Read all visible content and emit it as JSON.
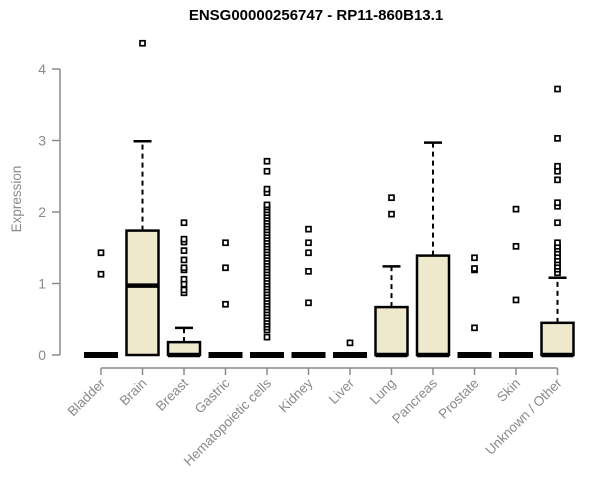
{
  "chart_data": {
    "type": "boxplot",
    "title": "ENSG00000256747 - RP11-860B13.1",
    "ylabel": "Expression",
    "xlabel": "",
    "ylim": [
      0,
      4
    ],
    "yticks": [
      0,
      1,
      2,
      3,
      4
    ],
    "grid": false,
    "legend": false,
    "categories": [
      "Bladder",
      "Brain",
      "Breast",
      "Gastric",
      "Hematopoietic cells",
      "Kidney",
      "Liver",
      "Lung",
      "Pancreas",
      "Prostate",
      "Skin",
      "Unknown / Other"
    ],
    "series": [
      {
        "name": "Bladder",
        "whisker_low": 0,
        "q1": 0,
        "median": 0,
        "q3": 0,
        "whisker_high": 0,
        "outliers": [
          1.13,
          1.43
        ]
      },
      {
        "name": "Brain",
        "whisker_low": 0,
        "q1": 0,
        "median": 0.97,
        "q3": 1.74,
        "whisker_high": 2.99,
        "outliers": [
          4.36
        ]
      },
      {
        "name": "Breast",
        "whisker_low": 0,
        "q1": 0,
        "median": 0,
        "q3": 0.18,
        "whisker_high": 0.38,
        "outliers": [
          0.87,
          0.91,
          0.99,
          1.06,
          1.19,
          1.22,
          1.33,
          1.46,
          1.58,
          1.62,
          1.85
        ]
      },
      {
        "name": "Gastric",
        "whisker_low": 0,
        "q1": 0,
        "median": 0,
        "q3": 0,
        "whisker_high": 0,
        "outliers": [
          0.71,
          1.22,
          1.57
        ]
      },
      {
        "name": "Hematopoietic cells",
        "whisker_low": 0,
        "q1": 0,
        "median": 0,
        "q3": 0,
        "whisker_high": 0,
        "outliers": [
          0.25,
          0.35,
          0.39,
          0.43,
          0.47,
          0.51,
          0.55,
          0.59,
          0.63,
          0.67,
          0.71,
          0.75,
          0.79,
          0.83,
          0.87,
          0.91,
          0.95,
          0.99,
          1.03,
          1.07,
          1.11,
          1.15,
          1.19,
          1.23,
          1.27,
          1.31,
          1.35,
          1.39,
          1.43,
          1.47,
          1.51,
          1.55,
          1.59,
          1.63,
          1.67,
          1.71,
          1.75,
          1.79,
          1.83,
          1.87,
          1.91,
          1.95,
          1.99,
          2.03,
          2.07,
          2.1,
          2.27,
          2.32,
          2.57,
          2.71
        ]
      },
      {
        "name": "Kidney",
        "whisker_low": 0,
        "q1": 0,
        "median": 0,
        "q3": 0,
        "whisker_high": 0,
        "outliers": [
          0.73,
          1.17,
          1.43,
          1.57,
          1.76
        ]
      },
      {
        "name": "Liver",
        "whisker_low": 0,
        "q1": 0,
        "median": 0,
        "q3": 0,
        "whisker_high": 0,
        "outliers": [
          0.17
        ]
      },
      {
        "name": "Lung",
        "whisker_low": 0,
        "q1": 0,
        "median": 0,
        "q3": 0.67,
        "whisker_high": 1.24,
        "outliers": [
          1.97,
          2.2
        ]
      },
      {
        "name": "Pancreas",
        "whisker_low": 0,
        "q1": 0,
        "median": 0,
        "q3": 1.39,
        "whisker_high": 2.97,
        "outliers": []
      },
      {
        "name": "Prostate",
        "whisker_low": 0,
        "q1": 0,
        "median": 0,
        "q3": 0,
        "whisker_high": 0,
        "outliers": [
          0.38,
          1.19,
          1.21,
          1.36
        ]
      },
      {
        "name": "Skin",
        "whisker_low": 0,
        "q1": 0,
        "median": 0,
        "q3": 0,
        "whisker_high": 0,
        "outliers": [
          0.77,
          1.52,
          2.04
        ]
      },
      {
        "name": "Unknown / Other",
        "whisker_low": 0,
        "q1": 0,
        "median": 0,
        "q3": 0.45,
        "whisker_high": 1.08,
        "outliers": [
          1.15,
          1.2,
          1.24,
          1.29,
          1.33,
          1.38,
          1.43,
          1.48,
          1.52,
          1.57,
          1.85,
          2.08,
          2.13,
          2.45,
          2.57,
          2.64,
          3.03,
          3.72
        ]
      }
    ],
    "style": {
      "box_fill": "#EEE8CD",
      "box_stroke": "#000000",
      "median_color": "#000000",
      "whisker_color": "#000000",
      "whisker_style": "dashed",
      "outlier_marker": "open-square",
      "outlier_color": "#000000",
      "axis_color": "#8A8A8A",
      "tick_label_color": "#8A8A8A",
      "title_color": "#000000",
      "background": "#FFFFFF"
    }
  }
}
